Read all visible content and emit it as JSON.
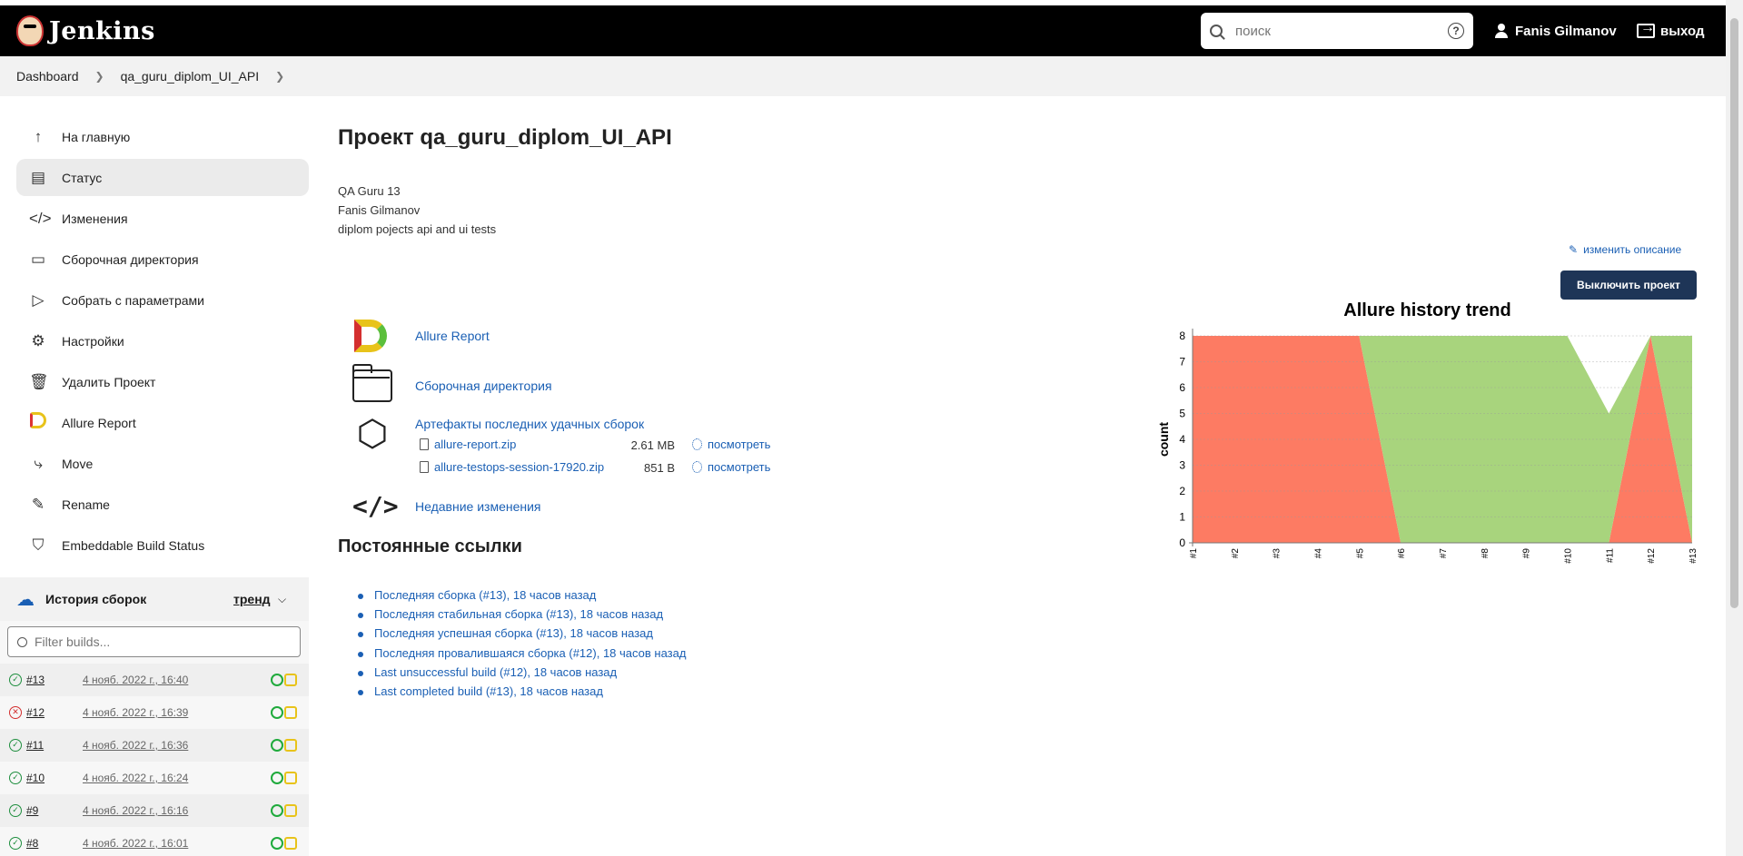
{
  "header": {
    "app_name": "Jenkins",
    "search_placeholder": "поиск",
    "user_name": "Fanis Gilmanov",
    "logout_label": "выход"
  },
  "breadcrumb": [
    "Dashboard",
    "qa_guru_diplom_UI_API"
  ],
  "sidebar": {
    "items": [
      {
        "label": "На главную",
        "icon": "arrow-up-icon"
      },
      {
        "label": "Статус",
        "icon": "status-icon"
      },
      {
        "label": "Изменения",
        "icon": "code-icon"
      },
      {
        "label": "Сборочная директория",
        "icon": "folder-icon"
      },
      {
        "label": "Собрать с параметрами",
        "icon": "play-icon"
      },
      {
        "label": "Настройки",
        "icon": "gear-icon"
      },
      {
        "label": "Удалить Проект",
        "icon": "trash-icon"
      },
      {
        "label": "Allure Report",
        "icon": "allure-icon"
      },
      {
        "label": "Move",
        "icon": "move-icon"
      },
      {
        "label": "Rename",
        "icon": "pencil-icon"
      },
      {
        "label": "Embeddable Build Status",
        "icon": "shield-icon"
      }
    ]
  },
  "history": {
    "title": "История сборок",
    "trend_label": "тренд",
    "filter_placeholder": "Filter builds...",
    "builds": [
      {
        "num": "#13",
        "date": "4 нояб. 2022 г., 16:40",
        "status": "success"
      },
      {
        "num": "#12",
        "date": "4 нояб. 2022 г., 16:39",
        "status": "failed"
      },
      {
        "num": "#11",
        "date": "4 нояб. 2022 г., 16:36",
        "status": "success"
      },
      {
        "num": "#10",
        "date": "4 нояб. 2022 г., 16:24",
        "status": "success"
      },
      {
        "num": "#9",
        "date": "4 нояб. 2022 г., 16:16",
        "status": "success"
      },
      {
        "num": "#8",
        "date": "4 нояб. 2022 г., 16:01",
        "status": "success"
      }
    ]
  },
  "main": {
    "title": "Проект qa_guru_diplom_UI_API",
    "description": [
      "QA Guru 13",
      "Fanis Gilmanov",
      "diplom pojects api and ui tests"
    ],
    "edit_description": "изменить описание",
    "disable_button": "Выключить проект",
    "links": {
      "allure": "Allure Report",
      "workspace": "Сборочная директория",
      "artifacts": "Артефакты последних удачных сборок",
      "changes": "Недавние изменения"
    },
    "artifacts": [
      {
        "name": "allure-report.zip",
        "size": "2.61 MB",
        "view": "посмотреть"
      },
      {
        "name": "allure-testops-session-17920.zip",
        "size": "851 B",
        "view": "посмотреть"
      }
    ],
    "permalinks_title": "Постоянные ссылки",
    "permalinks": [
      "Последняя сборка (#13), 18 часов назад",
      "Последняя стабильная сборка (#13), 18 часов назад",
      "Последняя успешная сборка (#13), 18 часов назад",
      "Последняя провалившаяся сборка (#12), 18 часов назад",
      "Last unsuccessful build (#12), 18 часов назад",
      "Last completed build (#13), 18 часов назад"
    ]
  },
  "chart_data": {
    "type": "area",
    "title": "Allure history trend",
    "ylabel": "count",
    "xlabel": "",
    "categories": [
      "#1",
      "#2",
      "#3",
      "#4",
      "#5",
      "#6",
      "#7",
      "#8",
      "#9",
      "#10",
      "#11",
      "#12",
      "#13"
    ],
    "ylim": [
      0,
      8
    ],
    "yticks": [
      0,
      1,
      2,
      3,
      4,
      5,
      6,
      7,
      8
    ],
    "series": [
      {
        "values": [
          8,
          8,
          8,
          8,
          8,
          0,
          0,
          0,
          0,
          0,
          0,
          8,
          0
        ],
        "color": "#fd7b63"
      },
      {
        "values": [
          0,
          0,
          0,
          0,
          0,
          8,
          8,
          8,
          8,
          8,
          5,
          0,
          8
        ],
        "color": "#a8d47d"
      }
    ],
    "grid": true
  },
  "colors": {
    "header_bg": "#000000",
    "link": "#1a5fb4",
    "button_bg": "#1e3557"
  }
}
